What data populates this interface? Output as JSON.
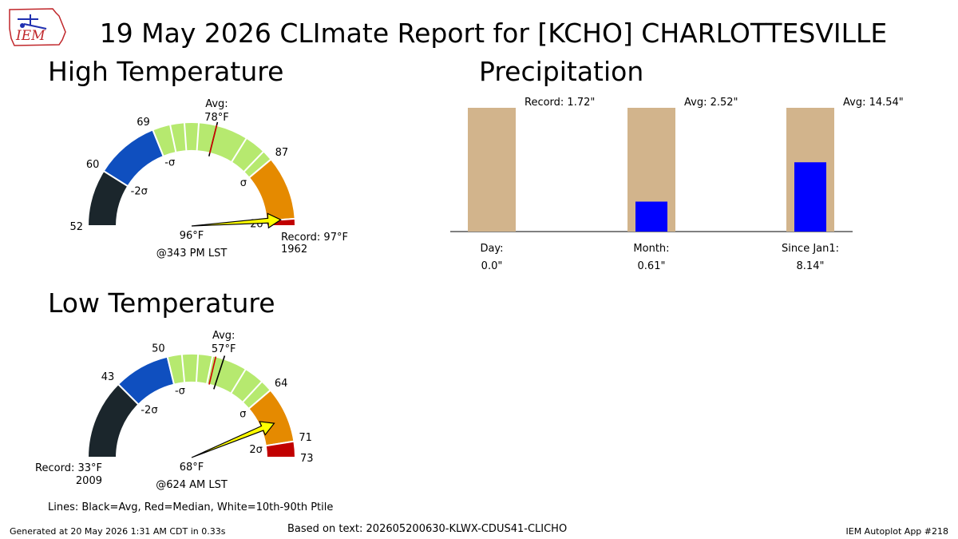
{
  "title": "19 May 2026 CLImate Report for [KCHO] CHARLOTTESVILLE",
  "logo": {
    "text": "IEM",
    "color": "#c0262a"
  },
  "sections": {
    "high": "High Temperature",
    "low": "Low Temperature",
    "precip": "Precipitation"
  },
  "colors": {
    "lt_minus2sd": "#1b262c",
    "minus2sd_minus1sd": "#0f4fbf",
    "within_1sd": "#b6e96f",
    "plus1sd_plus2sd": "#e58a00",
    "gt_plus2sd": "#c10000",
    "arrow": "#ffff00",
    "precip_avg": "#d2b48c",
    "precip_obs": "#0000ff"
  },
  "chart_data": [
    {
      "type": "gauge",
      "name": "high",
      "range": [
        52,
        97
      ],
      "observed": 96,
      "observed_label": "96°F",
      "time_label": "@343 PM LST",
      "avg": 78,
      "avg_label": "Avg:",
      "avg_value_label": "78°F",
      "median": 78,
      "sd_bounds": [
        52,
        60,
        69,
        87,
        96,
        97
      ],
      "tick_labels": [
        "52",
        "60",
        "69",
        "87"
      ],
      "sigma_labels": [
        "-2σ",
        "-σ",
        "σ",
        "2σ"
      ],
      "percentile_lines": [
        71.5,
        73.5,
        75.5,
        82.5,
        85.5
      ],
      "record": {
        "side": "right",
        "label": "Record: 97°F",
        "year": "1962"
      }
    },
    {
      "type": "gauge",
      "name": "low",
      "range": [
        33,
        73
      ],
      "observed": 68,
      "observed_label": "68°F",
      "time_label": "@624 AM LST",
      "avg": 57,
      "avg_label": "Avg:",
      "avg_value_label": "57°F",
      "median": 56,
      "sd_bounds": [
        33,
        43,
        50,
        64,
        71,
        73
      ],
      "tick_labels": [
        "43",
        "50",
        "64",
        "71",
        "73"
      ],
      "sigma_labels": [
        "-2σ",
        "-σ",
        "σ",
        "2σ"
      ],
      "percentile_lines": [
        51.8,
        53.8,
        55.6,
        60.0,
        62.5
      ],
      "record": {
        "side": "left",
        "label": "Record: 33°F",
        "year": "2009"
      }
    },
    {
      "type": "bar",
      "name": "precip",
      "categories": [
        "Day:",
        "Month:",
        "Since Jan1:"
      ],
      "value_labels": [
        "0.0\"",
        "0.61\"",
        "8.14\""
      ],
      "observed": [
        0.0,
        0.61,
        8.14
      ],
      "reference": [
        1.72,
        2.52,
        14.54
      ],
      "reference_labels": [
        "Record: 1.72\"",
        "Avg: 2.52\"",
        "Avg: 14.54\""
      ]
    }
  ],
  "legend_note": "Lines: Black=Avg, Red=Median, White=10th-90th Ptile",
  "footer": {
    "left": "Generated at 20 May 2026 1:31 AM CDT in 0.33s",
    "center": "Based on text: 202605200630-KLWX-CDUS41-CLICHO",
    "right": "IEM Autoplot App #218"
  }
}
